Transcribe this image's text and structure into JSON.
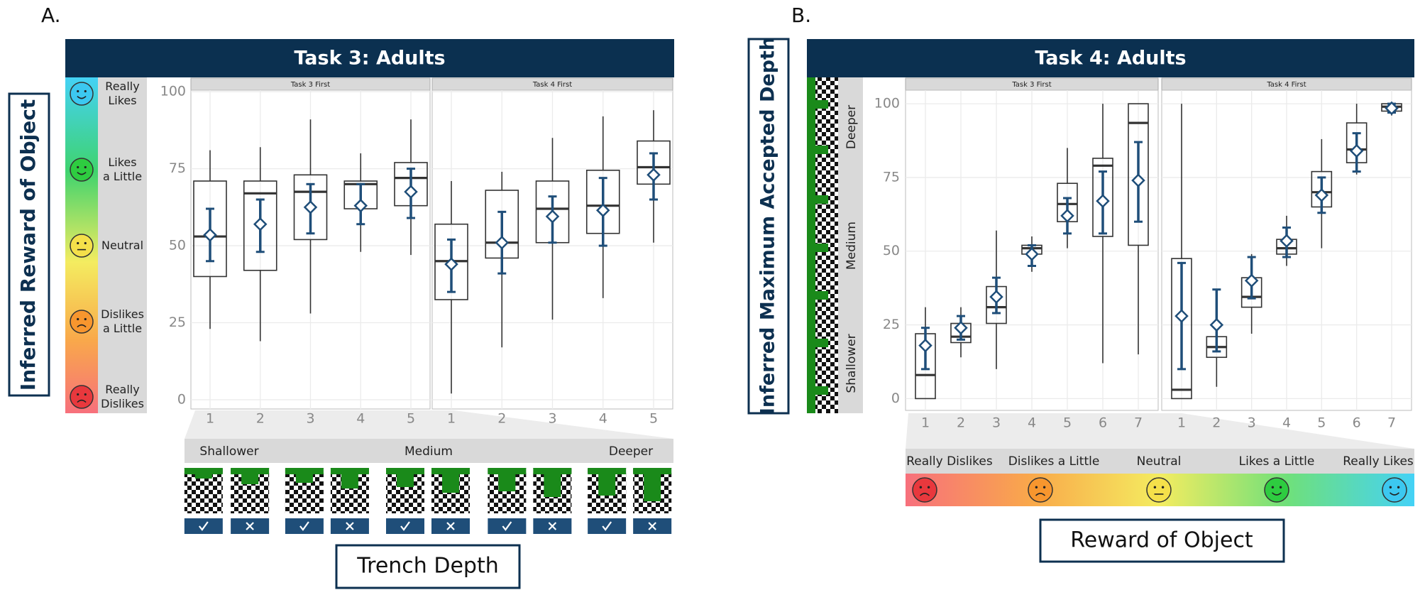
{
  "chart_data": [
    {
      "type": "box",
      "panel_label": "A.",
      "title": "Task 3: Adults",
      "ylabel": "Inferred Reward of Object",
      "xlabel": "Trench Depth",
      "ylim": [
        -3,
        100.5
      ],
      "yticks": [
        0,
        25,
        50,
        75,
        100
      ],
      "grid": true,
      "color": "#1f4e79",
      "side_legend": [
        "Really\nLikes",
        "Likes\na Little",
        "Neutral",
        "Dislikes\na Little",
        "Really\nDislikes"
      ],
      "bottom_legend": [
        "Shallower",
        "Medium",
        "Deeper"
      ],
      "facets": [
        {
          "name": "Task 3 First",
          "categories": [
            1,
            2,
            3,
            4,
            5
          ],
          "boxes": [
            {
              "lower": 23,
              "q1": 40,
              "median": 53,
              "q3": 71,
              "upper": 81,
              "mean": 53.5,
              "ci_low": 45,
              "ci_high": 62
            },
            {
              "lower": 19,
              "q1": 42,
              "median": 67,
              "q3": 71,
              "upper": 82,
              "mean": 57,
              "ci_low": 48,
              "ci_high": 65
            },
            {
              "lower": 28,
              "q1": 52,
              "median": 67.5,
              "q3": 73,
              "upper": 91,
              "mean": 62.5,
              "ci_low": 54,
              "ci_high": 70
            },
            {
              "lower": 48,
              "q1": 62,
              "median": 70,
              "q3": 71,
              "upper": 80,
              "mean": 63,
              "ci_low": 57,
              "ci_high": 70
            },
            {
              "lower": 47,
              "q1": 63,
              "median": 72,
              "q3": 77,
              "upper": 91,
              "mean": 67.5,
              "ci_low": 59,
              "ci_high": 75
            }
          ]
        },
        {
          "name": "Task 4 First",
          "categories": [
            1,
            2,
            3,
            4,
            5
          ],
          "boxes": [
            {
              "lower": 2,
              "q1": 32.5,
              "median": 45,
              "q3": 57,
              "upper": 71,
              "mean": 44,
              "ci_low": 35,
              "ci_high": 52
            },
            {
              "lower": 17,
              "q1": 46,
              "median": 51,
              "q3": 68,
              "upper": 74,
              "mean": 51,
              "ci_low": 41,
              "ci_high": 61
            },
            {
              "lower": 26,
              "q1": 51,
              "median": 62,
              "q3": 71,
              "upper": 85,
              "mean": 59.5,
              "ci_low": 51,
              "ci_high": 66
            },
            {
              "lower": 33,
              "q1": 54,
              "median": 63,
              "q3": 74.5,
              "upper": 92,
              "mean": 61.5,
              "ci_low": 50,
              "ci_high": 72
            },
            {
              "lower": 51,
              "q1": 70,
              "median": 75.5,
              "q3": 84,
              "upper": 94,
              "mean": 73,
              "ci_low": 65,
              "ci_high": 80
            }
          ]
        }
      ]
    },
    {
      "type": "box",
      "panel_label": "B.",
      "title": "Task 4: Adults",
      "ylabel": "Inferred Maximum Accepted Depth",
      "xlabel": "Reward of Object",
      "ylim": [
        -4,
        104.6
      ],
      "yticks": [
        0,
        25,
        50,
        75,
        100
      ],
      "grid": true,
      "color": "#1f4e79",
      "side_legend": [
        "Deeper",
        "Medium",
        "Shallower"
      ],
      "bottom_legend": [
        "Really Dislikes",
        "Dislikes a Little",
        "Neutral",
        "Likes a Little",
        "Really Likes"
      ],
      "facets": [
        {
          "name": "Task 3 First",
          "categories": [
            1,
            2,
            3,
            4,
            5,
            6,
            7
          ],
          "boxes": [
            {
              "lower": 0,
              "q1": 0,
              "median": 8,
              "q3": 22,
              "upper": 31,
              "mean": 18,
              "ci_low": 10,
              "ci_high": 24
            },
            {
              "lower": 14,
              "q1": 19,
              "median": 21,
              "q3": 25.5,
              "upper": 31,
              "mean": 24,
              "ci_low": 20,
              "ci_high": 28
            },
            {
              "lower": 10,
              "q1": 25.5,
              "median": 31,
              "q3": 38,
              "upper": 57,
              "mean": 34.5,
              "ci_low": 29,
              "ci_high": 41
            },
            {
              "lower": 43,
              "q1": 49,
              "median": 51,
              "q3": 52,
              "upper": 55,
              "mean": 49,
              "ci_low": 45,
              "ci_high": 52
            },
            {
              "lower": 51,
              "q1": 60,
              "median": 66,
              "q3": 73,
              "upper": 85,
              "mean": 62,
              "ci_low": 56,
              "ci_high": 68
            },
            {
              "lower": 12,
              "q1": 55,
              "median": 79,
              "q3": 81.5,
              "upper": 100,
              "mean": 67,
              "ci_low": 56,
              "ci_high": 77
            },
            {
              "lower": 15,
              "q1": 52,
              "median": 93.5,
              "q3": 100,
              "upper": 100,
              "mean": 74,
              "ci_low": 60,
              "ci_high": 87
            }
          ]
        },
        {
          "name": "Task 4 First",
          "categories": [
            1,
            2,
            3,
            4,
            5,
            6,
            7
          ],
          "boxes": [
            {
              "lower": 0,
              "q1": 0,
              "median": 3,
              "q3": 47.5,
              "upper": 100,
              "mean": 28,
              "ci_low": 10,
              "ci_high": 46
            },
            {
              "lower": 4,
              "q1": 14,
              "median": 17.5,
              "q3": 21,
              "upper": 31,
              "mean": 25,
              "ci_low": 16,
              "ci_high": 37
            },
            {
              "lower": 22,
              "q1": 31,
              "median": 34.5,
              "q3": 41,
              "upper": 49,
              "mean": 40,
              "ci_low": 34,
              "ci_high": 48
            },
            {
              "lower": 45,
              "q1": 49,
              "median": 51,
              "q3": 54,
              "upper": 62,
              "mean": 53.5,
              "ci_low": 48,
              "ci_high": 58
            },
            {
              "lower": 51,
              "q1": 65,
              "median": 70,
              "q3": 77,
              "upper": 88,
              "mean": 69,
              "ci_low": 63,
              "ci_high": 75
            },
            {
              "lower": 76,
              "q1": 80,
              "median": 84.5,
              "q3": 93.5,
              "upper": 100,
              "mean": 84,
              "ci_low": 77,
              "ci_high": 90
            },
            {
              "lower": 96,
              "q1": 97.5,
              "median": 99,
              "q3": 100,
              "upper": 100,
              "mean": 98.5,
              "ci_low": 97,
              "ci_high": 100
            }
          ]
        }
      ]
    }
  ]
}
